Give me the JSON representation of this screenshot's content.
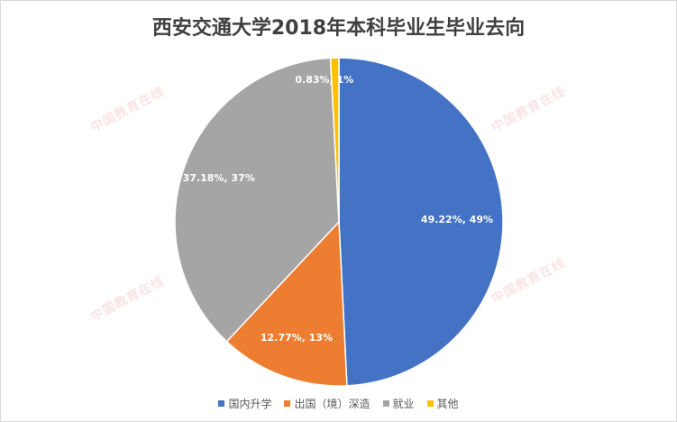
{
  "title": "西安交通大学2018年本科毕业生毕业去向",
  "watermark": "中国教育在线",
  "chart_data": {
    "type": "pie",
    "title": "西安交通大学2018年本科毕业生毕业去向",
    "categories": [
      "国内升学",
      "出国（境）深造",
      "就业",
      "其他"
    ],
    "values": [
      49.22,
      12.77,
      37.18,
      0.83
    ],
    "data_labels": [
      "49.22%, 49%",
      "12.77%, 13%",
      "37.18%, 37%",
      "0.83%, 1%"
    ],
    "colors": [
      "#4472C4",
      "#ED7D31",
      "#A5A5A5",
      "#FFC000"
    ],
    "start_angle": "12 o'clock",
    "direction": "clockwise",
    "legend_position": "bottom"
  }
}
